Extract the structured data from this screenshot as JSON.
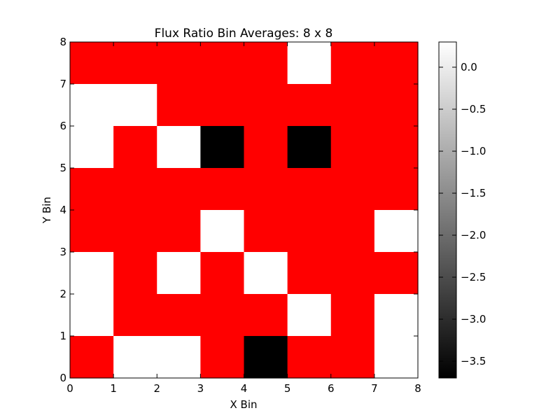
{
  "chart_data": {
    "type": "heatmap",
    "title": "Flux Ratio Bin Averages: 8 x 8",
    "xlabel": "X Bin",
    "ylabel": "Y Bin",
    "xlim": [
      0,
      8
    ],
    "ylim": [
      0,
      8
    ],
    "x_ticks": [
      "0",
      "1",
      "2",
      "3",
      "4",
      "5",
      "6",
      "7",
      "8"
    ],
    "y_ticks": [
      "0",
      "1",
      "2",
      "3",
      "4",
      "5",
      "6",
      "7",
      "8"
    ],
    "grid": false,
    "legend": "none",
    "colorbar": {
      "range": [
        -3.7,
        0.3
      ],
      "ticks": [
        0.0,
        -0.5,
        -1.0,
        -1.5,
        -2.0,
        -2.5,
        -3.0,
        -3.5
      ],
      "tick_labels": [
        "0.0",
        "−0.5",
        "−1.0",
        "−1.5",
        "−2.0",
        "−2.5",
        "−3.0",
        "−3.5"
      ],
      "colormap": "gray",
      "low_color": "#000000",
      "high_color": "#ffffff"
    },
    "masked_color": "#ff0000",
    "cell_value_note_keys": [
      "high",
      "low",
      "masked"
    ],
    "rows_top_to_bottom": [
      [
        "masked",
        "masked",
        "masked",
        "masked",
        "masked",
        "high",
        "masked",
        "masked"
      ],
      [
        "high",
        "high",
        "masked",
        "masked",
        "masked",
        "masked",
        "masked",
        "masked"
      ],
      [
        "high",
        "masked",
        "high",
        "low",
        "masked",
        "low",
        "masked",
        "masked"
      ],
      [
        "masked",
        "masked",
        "masked",
        "masked",
        "masked",
        "masked",
        "masked",
        "masked"
      ],
      [
        "masked",
        "masked",
        "masked",
        "high",
        "masked",
        "masked",
        "masked",
        "high"
      ],
      [
        "high",
        "masked",
        "high",
        "masked",
        "high",
        "masked",
        "masked",
        "masked"
      ],
      [
        "high",
        "masked",
        "masked",
        "masked",
        "masked",
        "high",
        "masked",
        "high"
      ],
      [
        "masked",
        "high",
        "high",
        "masked",
        "low",
        "masked",
        "masked",
        "high"
      ]
    ],
    "level_values": {
      "high": 0.3,
      "low": -3.7
    }
  }
}
